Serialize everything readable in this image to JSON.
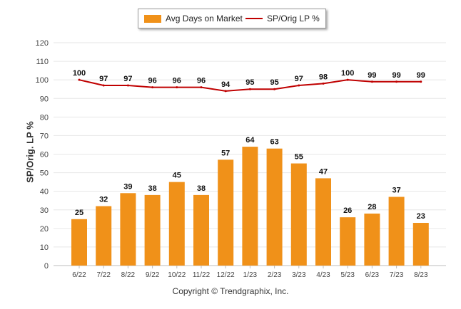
{
  "chart_data": {
    "type": "bar",
    "categories": [
      "6/22",
      "7/22",
      "8/22",
      "9/22",
      "10/22",
      "11/22",
      "12/22",
      "1/23",
      "2/23",
      "3/23",
      "4/23",
      "5/23",
      "6/23",
      "7/23",
      "8/23"
    ],
    "series": [
      {
        "name": "Avg Days on Market",
        "type": "bar",
        "color": "#f09119",
        "values": [
          25,
          32,
          39,
          38,
          45,
          38,
          57,
          64,
          63,
          55,
          47,
          26,
          28,
          37,
          23
        ]
      },
      {
        "name": "SP/Orig LP %",
        "type": "line",
        "color": "#c00000",
        "values": [
          100,
          97,
          97,
          96,
          96,
          96,
          94,
          95,
          95,
          97,
          98,
          100,
          99,
          99,
          99
        ]
      }
    ],
    "ylabel": "SP/Orig. LP %",
    "ylim": [
      0,
      120
    ],
    "yticks": [
      0,
      10,
      20,
      30,
      40,
      50,
      60,
      70,
      80,
      90,
      100,
      110,
      120
    ],
    "grid": true,
    "legend": "top-center"
  },
  "footer": "Copyright © Trendgraphix, Inc."
}
